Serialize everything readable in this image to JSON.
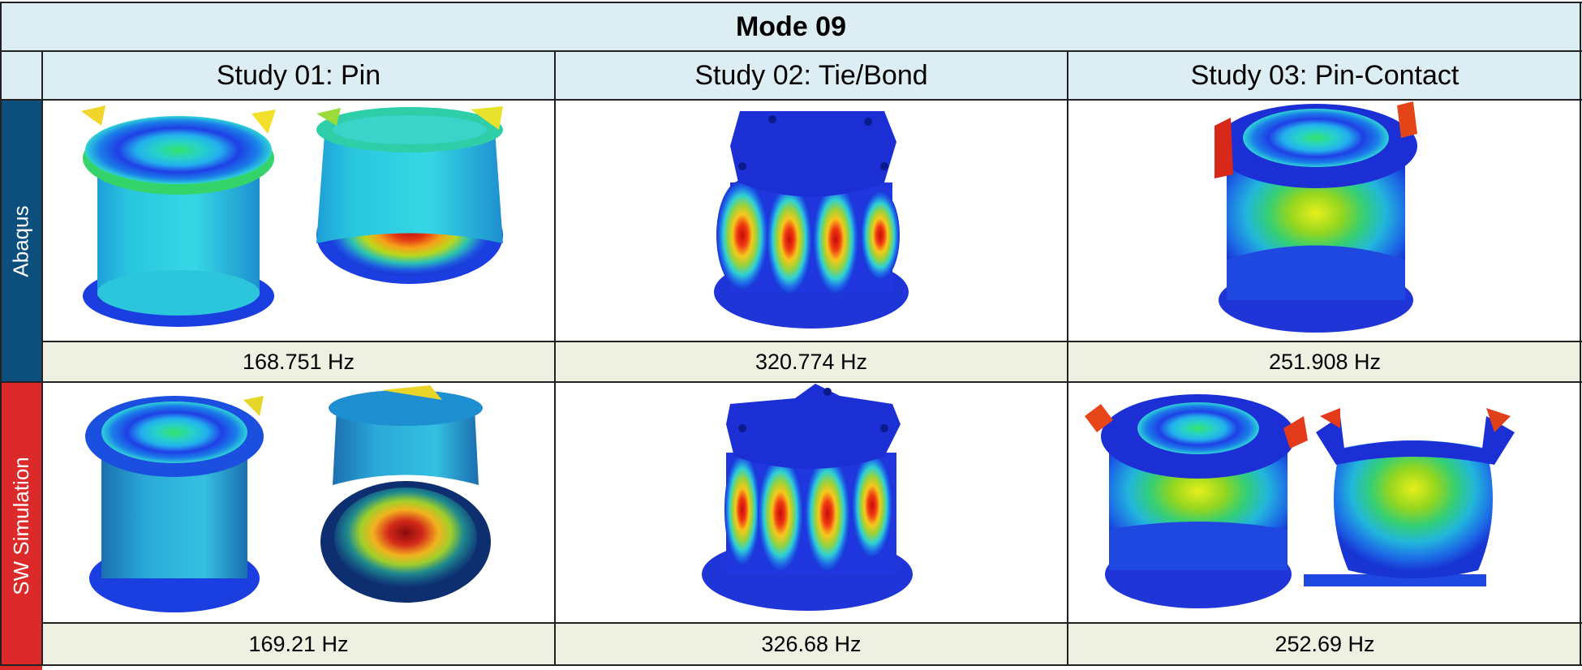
{
  "table": {
    "title": "Mode 09",
    "columns": [
      "Study 01: Pin",
      "Study 02: Tie/Bond",
      "Study 03: Pin-Contact"
    ],
    "rows": [
      {
        "label": "Abaqus",
        "color": "#0d4f7c",
        "frequencies": [
          "168.751 Hz",
          "320.774 Hz",
          "251.908 Hz"
        ]
      },
      {
        "label": "SW Simulation",
        "color": "#dc2a2a",
        "frequencies": [
          "169.21 Hz",
          "326.68 Hz",
          "252.69 Hz"
        ]
      }
    ]
  },
  "colors": {
    "header_bg": "#dcedf3",
    "freq_bg": "#eef0e2"
  }
}
